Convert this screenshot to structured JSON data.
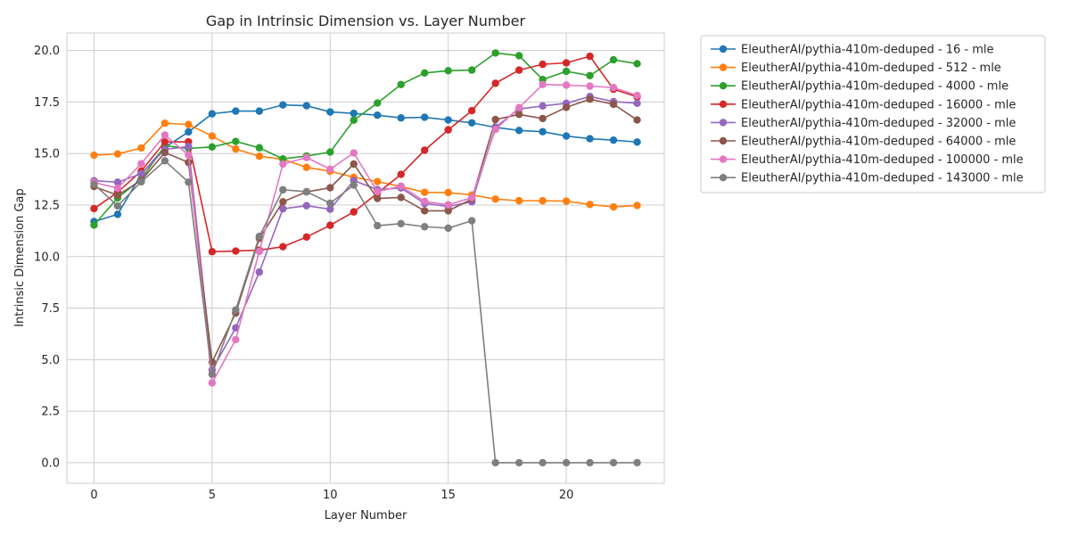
{
  "chart_data": {
    "type": "line",
    "title": "Gap in Intrinsic Dimension vs. Layer Number",
    "xlabel": "Layer Number",
    "ylabel": "Intrinsic Dimension Gap",
    "xlim": [
      -1.15,
      24.15
    ],
    "ylim": [
      -1.0,
      20.85
    ],
    "xticks": [
      0,
      5,
      10,
      15,
      20
    ],
    "xtick_labels": [
      "0",
      "5",
      "10",
      "15",
      "20"
    ],
    "yticks": [
      0.0,
      2.5,
      5.0,
      7.5,
      10.0,
      12.5,
      15.0,
      17.5,
      20.0
    ],
    "ytick_labels": [
      "0.0",
      "2.5",
      "5.0",
      "7.5",
      "10.0",
      "12.5",
      "15.0",
      "17.5",
      "20.0"
    ],
    "grid": true,
    "legend_position": "outside upper-right",
    "x": [
      0,
      1,
      2,
      3,
      4,
      5,
      6,
      7,
      8,
      9,
      10,
      11,
      12,
      13,
      14,
      15,
      16,
      17,
      18,
      19,
      20,
      21,
      22,
      23
    ],
    "series": [
      {
        "name": "EleutherAI/pythia-410m-deduped - 16 - mle",
        "color": "#1f77b4",
        "values": [
          11.7,
          12.05,
          14.0,
          15.3,
          16.05,
          16.93,
          17.06,
          17.06,
          17.36,
          17.32,
          17.02,
          16.95,
          16.86,
          16.73,
          16.76,
          16.63,
          16.49,
          16.27,
          16.12,
          16.06,
          15.85,
          15.72,
          15.65,
          15.56
        ]
      },
      {
        "name": "EleutherAI/pythia-410m-deduped - 512 - mle",
        "color": "#ff7f0e",
        "values": [
          14.92,
          14.98,
          15.27,
          16.47,
          16.41,
          15.85,
          15.22,
          14.87,
          14.72,
          14.33,
          14.14,
          13.85,
          13.64,
          13.4,
          13.12,
          13.11,
          12.99,
          12.79,
          12.71,
          12.71,
          12.69,
          12.53,
          12.41,
          12.48
        ]
      },
      {
        "name": "EleutherAI/pythia-410m-deduped - 4000 - mle",
        "color": "#2ca02c",
        "values": [
          11.53,
          12.85,
          13.76,
          15.38,
          15.25,
          15.32,
          15.59,
          15.28,
          14.74,
          14.88,
          15.07,
          16.62,
          17.45,
          18.35,
          18.91,
          19.02,
          19.05,
          19.88,
          19.75,
          18.59,
          18.99,
          18.78,
          19.55,
          19.36
        ]
      },
      {
        "name": "EleutherAI/pythia-410m-deduped - 16000 - mle",
        "color": "#d62728",
        "values": [
          12.33,
          13.12,
          14.15,
          15.57,
          15.57,
          10.24,
          10.27,
          10.31,
          10.48,
          10.95,
          11.52,
          12.17,
          13.07,
          13.99,
          15.16,
          16.15,
          17.08,
          18.41,
          19.05,
          19.33,
          19.4,
          19.72,
          18.12,
          17.75
        ]
      },
      {
        "name": "EleutherAI/pythia-410m-deduped - 32000 - mle",
        "color": "#9467bd",
        "values": [
          13.68,
          13.61,
          14.02,
          15.2,
          15.34,
          4.5,
          6.54,
          9.25,
          12.32,
          12.47,
          12.3,
          13.69,
          13.25,
          13.33,
          12.58,
          12.43,
          12.66,
          16.28,
          17.16,
          17.31,
          17.44,
          17.77,
          17.52,
          17.44
        ]
      },
      {
        "name": "EleutherAI/pythia-410m-deduped - 64000 - mle",
        "color": "#8c564b",
        "values": [
          13.4,
          12.98,
          13.7,
          15.05,
          14.57,
          4.88,
          7.26,
          10.88,
          12.66,
          13.14,
          13.34,
          14.49,
          12.82,
          12.87,
          12.22,
          12.22,
          12.79,
          16.65,
          16.9,
          16.7,
          17.24,
          17.64,
          17.39,
          16.63
        ]
      },
      {
        "name": "EleutherAI/pythia-410m-deduped - 100000 - mle",
        "color": "#e377c2",
        "values": [
          13.6,
          13.32,
          14.51,
          15.9,
          14.93,
          3.87,
          5.97,
          10.25,
          14.49,
          14.81,
          14.24,
          15.03,
          13.15,
          13.42,
          12.68,
          12.51,
          12.86,
          16.17,
          17.23,
          18.35,
          18.32,
          18.27,
          18.2,
          17.82
        ]
      },
      {
        "name": "EleutherAI/pythia-410m-deduped - 143000 - mle",
        "color": "#7f7f7f",
        "values": [
          13.51,
          12.46,
          13.63,
          14.65,
          13.61,
          4.29,
          7.41,
          10.98,
          13.24,
          13.15,
          12.59,
          13.47,
          11.5,
          11.6,
          11.45,
          11.38,
          11.74,
          0.0,
          0.0,
          0.0,
          0.0,
          0.0,
          0.0,
          0.0
        ]
      }
    ]
  }
}
